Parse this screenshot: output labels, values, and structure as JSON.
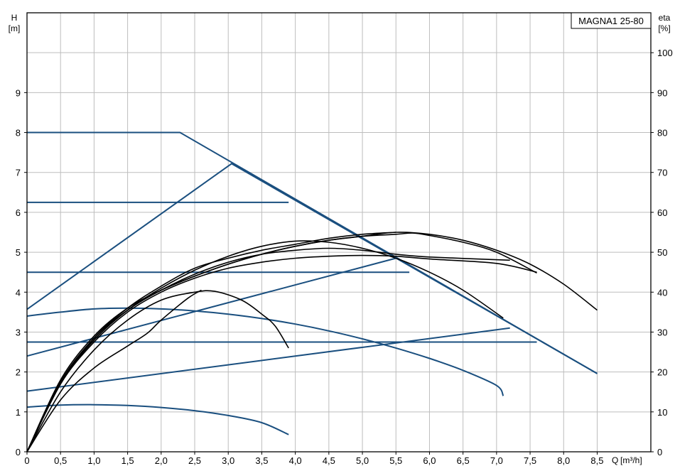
{
  "chart_data": {
    "type": "line",
    "title": "MAGNA1 25-80",
    "left_axis": {
      "label_top": "H",
      "unit": "[m]",
      "ticks": [
        "0",
        "1",
        "2",
        "3",
        "4",
        "5",
        "6",
        "7",
        "8",
        "9"
      ],
      "range": [
        0,
        11
      ]
    },
    "right_axis": {
      "label_top": "eta",
      "unit": "[%]",
      "ticks": [
        "0",
        "10",
        "20",
        "30",
        "40",
        "50",
        "60",
        "70",
        "80",
        "90",
        "100"
      ],
      "range": [
        0,
        110
      ]
    },
    "x_axis": {
      "label": "Q",
      "unit": "[m³/h]",
      "ticks": [
        "0",
        "0,5",
        "1,0",
        "1,5",
        "2,0",
        "2,5",
        "3,0",
        "3,5",
        "4,0",
        "4,5",
        "5,0",
        "5,5",
        "6,0",
        "6,5",
        "7,0",
        "7,5",
        "8,0",
        "8,5"
      ],
      "range": [
        0,
        9.3
      ]
    },
    "grid": true,
    "colors": {
      "pump_curves": "#1a4f7f",
      "efficiency_curves": "#000000"
    },
    "pump_curves": [
      {
        "points": [
          [
            0,
            8
          ],
          [
            2.28,
            8
          ],
          [
            8.5,
            1.96
          ]
        ]
      },
      {
        "points": [
          [
            0,
            6.25
          ],
          [
            3.9,
            6.25
          ]
        ]
      },
      {
        "points": [
          [
            0,
            4.5
          ],
          [
            5.7,
            4.5
          ]
        ]
      },
      {
        "points": [
          [
            0,
            2.75
          ],
          [
            7.6,
            2.75
          ]
        ]
      },
      {
        "points": [
          [
            0,
            3.57
          ],
          [
            3.05,
            7.22
          ],
          [
            8.5,
            1.96
          ]
        ]
      },
      {
        "points": [
          [
            0,
            2.4
          ],
          [
            5.5,
            4.85
          ]
        ]
      },
      {
        "points": [
          [
            0,
            1.52
          ],
          [
            7.2,
            3.1
          ]
        ]
      },
      {
        "points": [
          [
            0,
            3.4
          ],
          [
            0.5,
            3.5
          ],
          [
            1,
            3.58
          ],
          [
            1.5,
            3.6
          ],
          [
            2,
            3.58
          ],
          [
            2.5,
            3.53
          ],
          [
            3,
            3.45
          ],
          [
            3.5,
            3.34
          ],
          [
            4,
            3.2
          ],
          [
            4.5,
            3.03
          ],
          [
            5,
            2.83
          ],
          [
            5.5,
            2.6
          ],
          [
            6,
            2.34
          ],
          [
            6.5,
            2.04
          ],
          [
            7,
            1.66
          ],
          [
            7.1,
            1.4
          ]
        ]
      },
      {
        "points": [
          [
            0,
            1.12
          ],
          [
            0.5,
            1.17
          ],
          [
            1,
            1.18
          ],
          [
            1.5,
            1.16
          ],
          [
            2,
            1.11
          ],
          [
            2.5,
            1.03
          ],
          [
            3,
            0.91
          ],
          [
            3.5,
            0.73
          ],
          [
            3.9,
            0.43
          ]
        ]
      }
    ],
    "efficiency_curves": [
      {
        "points": [
          [
            0,
            0
          ],
          [
            0.5,
            1.8
          ],
          [
            1,
            2.9
          ],
          [
            1.5,
            3.6
          ],
          [
            2,
            4.05
          ],
          [
            2.5,
            4.4
          ],
          [
            3,
            4.7
          ],
          [
            3.5,
            4.95
          ],
          [
            4,
            5.15
          ],
          [
            4.5,
            5.3
          ],
          [
            5,
            5.4
          ],
          [
            5.5,
            5.5
          ],
          [
            6,
            5.45
          ],
          [
            6.5,
            5.3
          ],
          [
            7,
            5.05
          ],
          [
            7.5,
            4.7
          ],
          [
            8,
            4.2
          ],
          [
            8.5,
            3.55
          ]
        ]
      },
      {
        "points": [
          [
            0,
            0
          ],
          [
            0.5,
            1.75
          ],
          [
            1,
            2.85
          ],
          [
            1.5,
            3.55
          ],
          [
            2,
            4.05
          ],
          [
            2.5,
            4.4
          ],
          [
            3,
            4.7
          ],
          [
            3.5,
            4.95
          ],
          [
            4,
            5.15
          ],
          [
            4.5,
            5.3
          ],
          [
            5,
            5.4
          ],
          [
            5.5,
            5.45
          ],
          [
            5.75,
            5.48
          ],
          [
            6,
            5.42
          ],
          [
            6.5,
            5.25
          ],
          [
            7,
            5.0
          ],
          [
            7.6,
            4.48
          ]
        ]
      },
      {
        "points": [
          [
            0,
            0
          ],
          [
            0.5,
            1.75
          ],
          [
            1,
            2.8
          ],
          [
            1.5,
            3.55
          ],
          [
            2,
            4.05
          ],
          [
            2.5,
            4.45
          ],
          [
            3,
            4.75
          ],
          [
            3.5,
            4.95
          ],
          [
            4,
            5.05
          ],
          [
            4.5,
            5.1
          ],
          [
            5,
            5.05
          ],
          [
            5.5,
            4.95
          ],
          [
            6,
            4.88
          ],
          [
            7.2,
            4.8
          ]
        ]
      },
      {
        "points": [
          [
            0,
            0
          ],
          [
            0.5,
            1.7
          ],
          [
            1,
            2.75
          ],
          [
            1.5,
            3.5
          ],
          [
            2,
            4.0
          ],
          [
            2.5,
            4.35
          ],
          [
            3,
            4.6
          ],
          [
            3.5,
            4.75
          ],
          [
            4,
            4.85
          ],
          [
            4.5,
            4.9
          ],
          [
            5,
            4.92
          ],
          [
            5.5,
            4.9
          ],
          [
            6,
            4.83
          ],
          [
            7,
            4.72
          ],
          [
            7.6,
            4.5
          ]
        ]
      },
      {
        "points": [
          [
            0,
            0
          ],
          [
            0.5,
            1.7
          ],
          [
            1,
            2.8
          ],
          [
            1.5,
            3.55
          ],
          [
            2,
            4.1
          ],
          [
            2.5,
            4.55
          ],
          [
            3,
            4.9
          ],
          [
            3.5,
            5.15
          ],
          [
            4,
            5.28
          ],
          [
            4.5,
            5.25
          ],
          [
            5,
            5.1
          ],
          [
            5.5,
            4.85
          ],
          [
            6,
            4.5
          ],
          [
            6.5,
            4.05
          ],
          [
            7.1,
            3.35
          ]
        ]
      },
      {
        "points": [
          [
            0,
            0
          ],
          [
            0.5,
            1.7
          ],
          [
            1,
            2.85
          ],
          [
            1.5,
            3.6
          ],
          [
            2,
            4.15
          ],
          [
            2.5,
            4.6
          ],
          [
            3,
            4.85
          ],
          [
            3.5,
            5.05
          ],
          [
            4,
            5.2
          ],
          [
            4.5,
            5.35
          ],
          [
            5,
            5.45
          ],
          [
            5.5,
            5.5
          ]
        ]
      },
      {
        "points": [
          [
            0,
            0
          ],
          [
            0.5,
            1.5
          ],
          [
            1,
            2.55
          ],
          [
            1.5,
            3.3
          ],
          [
            2,
            3.8
          ],
          [
            2.5,
            4.0
          ],
          [
            2.8,
            4.02
          ],
          [
            3.2,
            3.8
          ],
          [
            3.5,
            3.45
          ],
          [
            3.7,
            3.15
          ],
          [
            3.9,
            2.6
          ]
        ]
      },
      {
        "points": [
          [
            0,
            0
          ],
          [
            0.5,
            1.3
          ],
          [
            1,
            2.1
          ],
          [
            1.5,
            2.65
          ],
          [
            1.8,
            2.98
          ],
          [
            2.0,
            3.3
          ],
          [
            2.4,
            3.85
          ],
          [
            2.6,
            4.05
          ]
        ]
      }
    ]
  }
}
